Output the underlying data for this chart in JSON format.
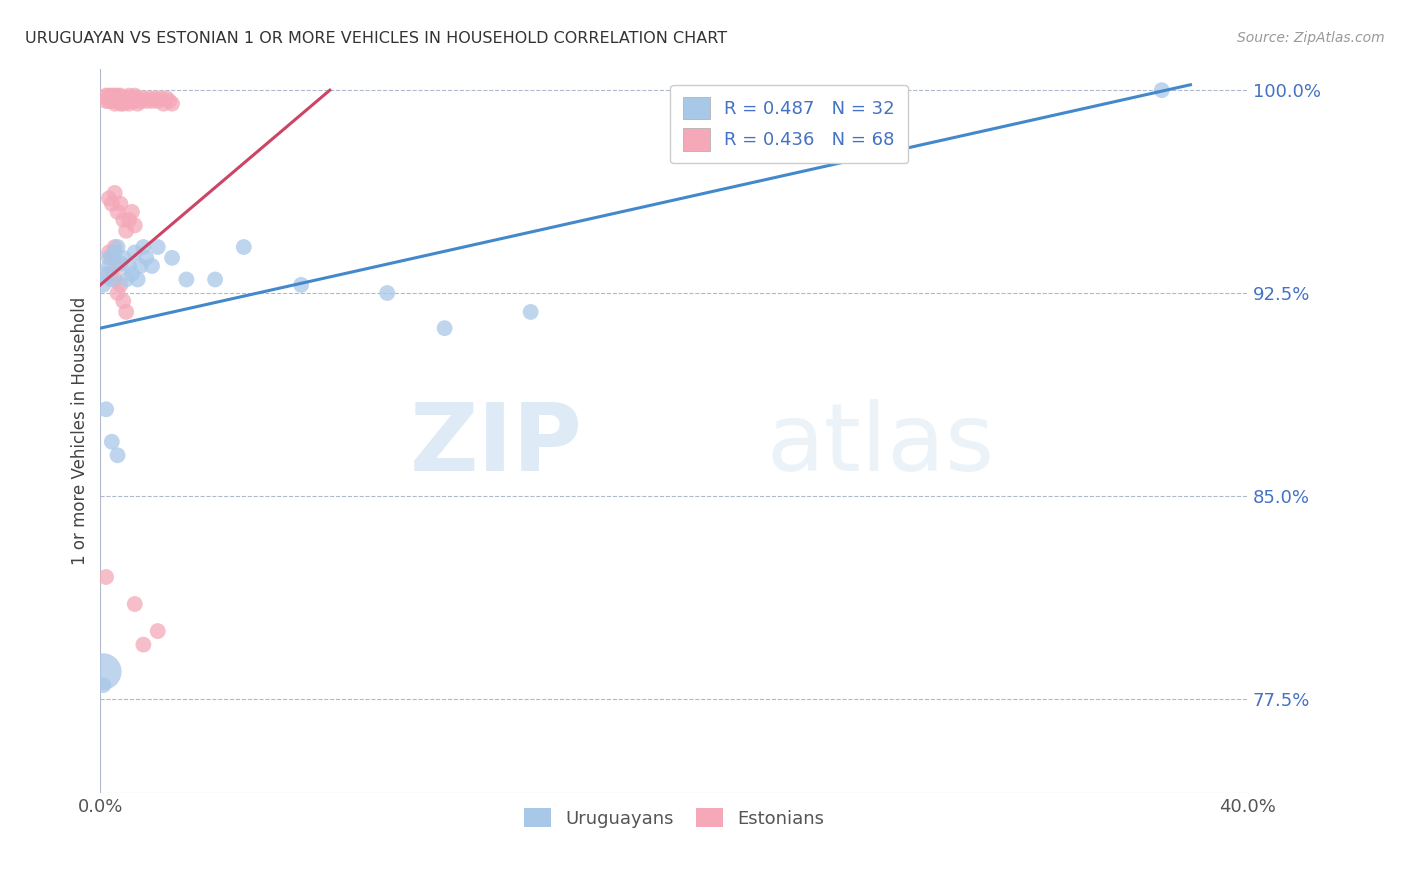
{
  "title": "URUGUAYAN VS ESTONIAN 1 OR MORE VEHICLES IN HOUSEHOLD CORRELATION CHART",
  "source": "Source: ZipAtlas.com",
  "ylabel": "1 or more Vehicles in Household",
  "xlim": [
    0.0,
    0.4
  ],
  "ylim": [
    0.74,
    1.008
  ],
  "yticks": [
    0.775,
    0.85,
    0.925,
    1.0
  ],
  "ytick_labels": [
    "77.5%",
    "85.0%",
    "92.5%",
    "100.0%"
  ],
  "xticks": [
    0.0,
    0.05,
    0.1,
    0.15,
    0.2,
    0.25,
    0.3,
    0.35,
    0.4
  ],
  "xtick_labels": [
    "0.0%",
    "",
    "",
    "",
    "",
    "",
    "",
    "",
    "40.0%"
  ],
  "legend_blue_r": "R = 0.487",
  "legend_blue_n": "N = 32",
  "legend_pink_r": "R = 0.436",
  "legend_pink_n": "N = 68",
  "blue_color": "#a8c8e8",
  "pink_color": "#f4a8b8",
  "blue_line_color": "#4488cc",
  "pink_line_color": "#cc4466",
  "blue_line_x": [
    0.0,
    0.38
  ],
  "blue_line_y": [
    0.912,
    1.002
  ],
  "pink_line_x": [
    0.0,
    0.08
  ],
  "pink_line_y": [
    0.928,
    1.0
  ],
  "uruguayan_x": [
    0.001,
    0.002,
    0.003,
    0.003,
    0.004,
    0.005,
    0.006,
    0.007,
    0.008,
    0.009,
    0.01,
    0.011,
    0.012,
    0.013,
    0.014,
    0.015,
    0.016,
    0.018,
    0.02,
    0.025,
    0.03,
    0.04,
    0.05,
    0.07,
    0.1,
    0.12,
    0.15,
    0.002,
    0.004,
    0.006,
    0.37,
    0.001
  ],
  "uruguayan_y": [
    0.928,
    0.932,
    0.935,
    0.938,
    0.93,
    0.94,
    0.942,
    0.936,
    0.938,
    0.93,
    0.935,
    0.932,
    0.94,
    0.93,
    0.935,
    0.942,
    0.938,
    0.935,
    0.942,
    0.938,
    0.93,
    0.93,
    0.942,
    0.928,
    0.925,
    0.912,
    0.918,
    0.882,
    0.87,
    0.865,
    1.0,
    0.78
  ],
  "uruguayan_large_x": [
    0.001
  ],
  "uruguayan_large_y": [
    0.785
  ],
  "estonian_x": [
    0.002,
    0.002,
    0.003,
    0.003,
    0.003,
    0.004,
    0.004,
    0.004,
    0.005,
    0.005,
    0.005,
    0.006,
    0.006,
    0.006,
    0.007,
    0.007,
    0.007,
    0.008,
    0.008,
    0.008,
    0.009,
    0.009,
    0.01,
    0.01,
    0.01,
    0.011,
    0.011,
    0.012,
    0.012,
    0.013,
    0.013,
    0.014,
    0.015,
    0.016,
    0.017,
    0.018,
    0.019,
    0.02,
    0.021,
    0.022,
    0.023,
    0.024,
    0.025,
    0.003,
    0.004,
    0.005,
    0.006,
    0.007,
    0.008,
    0.009,
    0.01,
    0.011,
    0.012,
    0.003,
    0.004,
    0.005,
    0.006,
    0.003,
    0.004,
    0.005,
    0.006,
    0.007,
    0.008,
    0.009,
    0.012,
    0.015,
    0.02,
    0.002
  ],
  "estonian_y": [
    0.998,
    0.996,
    0.998,
    0.997,
    0.996,
    0.998,
    0.997,
    0.996,
    0.998,
    0.997,
    0.995,
    0.998,
    0.997,
    0.996,
    0.998,
    0.997,
    0.995,
    0.997,
    0.996,
    0.995,
    0.997,
    0.996,
    0.998,
    0.996,
    0.995,
    0.997,
    0.996,
    0.998,
    0.996,
    0.997,
    0.995,
    0.996,
    0.997,
    0.996,
    0.997,
    0.996,
    0.997,
    0.996,
    0.997,
    0.995,
    0.997,
    0.996,
    0.995,
    0.96,
    0.958,
    0.962,
    0.955,
    0.958,
    0.952,
    0.948,
    0.952,
    0.955,
    0.95,
    0.94,
    0.938,
    0.942,
    0.935,
    0.932,
    0.938,
    0.93,
    0.925,
    0.928,
    0.922,
    0.918,
    0.81,
    0.795,
    0.8,
    0.82
  ]
}
